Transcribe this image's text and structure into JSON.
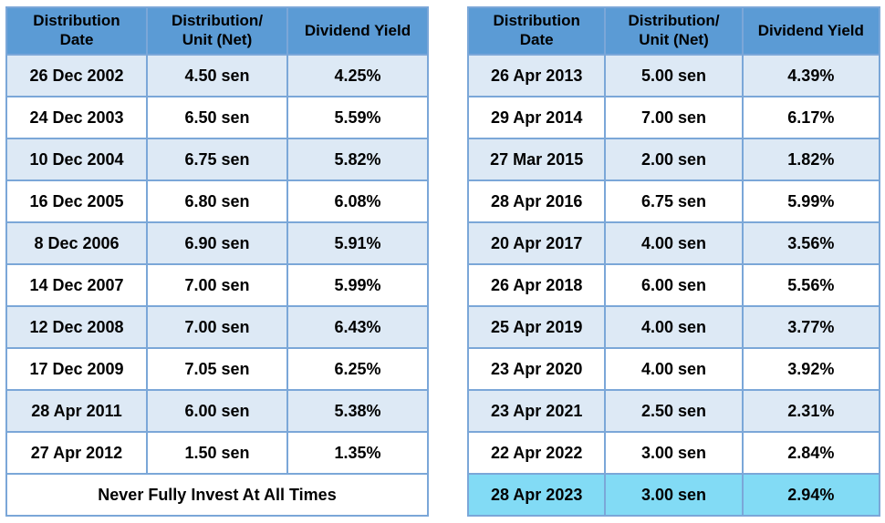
{
  "colors": {
    "header_bg": "#5b9bd5",
    "border": "#7ba7d8",
    "row_alt_bg": "#dde9f5",
    "row_bg": "#ffffff",
    "highlight_bg": "#82dbf5",
    "text": "#000000",
    "page_bg": "#ffffff"
  },
  "left_table": {
    "headers": [
      "Distribution\nDate",
      "Distribution/\nUnit (Net)",
      "Dividend Yield"
    ],
    "rows": [
      {
        "date": "26 Dec 2002",
        "unit": "4.50 sen",
        "yield": "4.25%"
      },
      {
        "date": "24 Dec 2003",
        "unit": "6.50 sen",
        "yield": "5.59%"
      },
      {
        "date": "10 Dec 2004",
        "unit": "6.75 sen",
        "yield": "5.82%"
      },
      {
        "date": "16 Dec 2005",
        "unit": "6.80 sen",
        "yield": "6.08%"
      },
      {
        "date": "8 Dec 2006",
        "unit": "6.90 sen",
        "yield": "5.91%"
      },
      {
        "date": "14 Dec 2007",
        "unit": "7.00 sen",
        "yield": "5.99%"
      },
      {
        "date": "12 Dec 2008",
        "unit": "7.00 sen",
        "yield": "6.43%"
      },
      {
        "date": "17 Dec 2009",
        "unit": "7.05 sen",
        "yield": "6.25%"
      },
      {
        "date": "28 Apr 2011",
        "unit": "6.00 sen",
        "yield": "5.38%"
      },
      {
        "date": "27 Apr 2012",
        "unit": "1.50 sen",
        "yield": "1.35%"
      }
    ],
    "footer": "Never Fully Invest At All Times"
  },
  "right_table": {
    "headers": [
      "Distribution\nDate",
      "Distribution/\nUnit (Net)",
      "Dividend Yield"
    ],
    "rows": [
      {
        "date": "26 Apr 2013",
        "unit": "5.00 sen",
        "yield": "4.39%"
      },
      {
        "date": "29 Apr 2014",
        "unit": "7.00 sen",
        "yield": "6.17%"
      },
      {
        "date": "27 Mar 2015",
        "unit": "2.00 sen",
        "yield": "1.82%"
      },
      {
        "date": "28 Apr 2016",
        "unit": "6.75 sen",
        "yield": "5.99%"
      },
      {
        "date": "20 Apr 2017",
        "unit": "4.00 sen",
        "yield": "3.56%"
      },
      {
        "date": "26 Apr 2018",
        "unit": "6.00 sen",
        "yield": "5.56%"
      },
      {
        "date": "25 Apr 2019",
        "unit": "4.00 sen",
        "yield": "3.77%"
      },
      {
        "date": "23 Apr 2020",
        "unit": "4.00 sen",
        "yield": "3.92%"
      },
      {
        "date": "23 Apr 2021",
        "unit": "2.50 sen",
        "yield": "2.31%"
      },
      {
        "date": "22 Apr 2022",
        "unit": "3.00 sen",
        "yield": "2.84%"
      },
      {
        "date": "28 Apr 2023",
        "unit": "3.00 sen",
        "yield": "2.94%"
      }
    ],
    "highlighted_row_index": 10
  }
}
